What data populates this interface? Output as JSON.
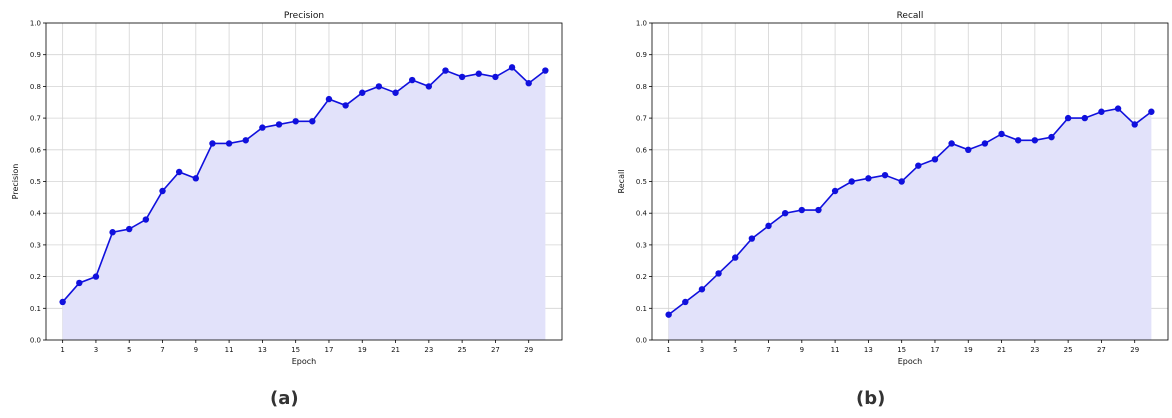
{
  "colors": {
    "line": "#1010dd",
    "fill": "#e2e2fa",
    "grid": "#d4d4d4",
    "text": "#111111"
  },
  "panel_labels": [
    "(a)",
    "(b)"
  ],
  "chart_data": [
    {
      "type": "area",
      "title": "Precision",
      "xlabel": "Epoch",
      "ylabel": "Precision",
      "xlim": [
        0,
        31
      ],
      "ylim": [
        0.0,
        1.0
      ],
      "xticks": [
        1,
        3,
        5,
        7,
        9,
        11,
        13,
        15,
        17,
        19,
        21,
        23,
        25,
        27,
        29
      ],
      "yticks": [
        0.0,
        0.1,
        0.2,
        0.3,
        0.4,
        0.5,
        0.6,
        0.7,
        0.8,
        0.9,
        1.0
      ],
      "grid": true,
      "x": [
        1,
        2,
        3,
        4,
        5,
        6,
        7,
        8,
        9,
        10,
        11,
        12,
        13,
        14,
        15,
        16,
        17,
        18,
        19,
        20,
        21,
        22,
        23,
        24,
        25,
        26,
        27,
        28,
        29,
        30
      ],
      "values": [
        0.12,
        0.18,
        0.2,
        0.34,
        0.35,
        0.38,
        0.47,
        0.53,
        0.51,
        0.62,
        0.62,
        0.63,
        0.67,
        0.68,
        0.69,
        0.69,
        0.76,
        0.74,
        0.78,
        0.8,
        0.78,
        0.82,
        0.8,
        0.85,
        0.83,
        0.84,
        0.83,
        0.86,
        0.81,
        0.85
      ]
    },
    {
      "type": "area",
      "title": "Recall",
      "xlabel": "Epoch",
      "ylabel": "Recall",
      "xlim": [
        0,
        31
      ],
      "ylim": [
        0.0,
        1.0
      ],
      "xticks": [
        1,
        3,
        5,
        7,
        9,
        11,
        13,
        15,
        17,
        19,
        21,
        23,
        25,
        27,
        29
      ],
      "yticks": [
        0.0,
        0.1,
        0.2,
        0.3,
        0.4,
        0.5,
        0.6,
        0.7,
        0.8,
        0.9,
        1.0
      ],
      "grid": true,
      "x": [
        1,
        2,
        3,
        4,
        5,
        6,
        7,
        8,
        9,
        10,
        11,
        12,
        13,
        14,
        15,
        16,
        17,
        18,
        19,
        20,
        21,
        22,
        23,
        24,
        25,
        26,
        27,
        28,
        29,
        30
      ],
      "values": [
        0.08,
        0.12,
        0.16,
        0.21,
        0.26,
        0.32,
        0.36,
        0.4,
        0.41,
        0.41,
        0.47,
        0.5,
        0.51,
        0.52,
        0.5,
        0.55,
        0.57,
        0.62,
        0.6,
        0.62,
        0.65,
        0.63,
        0.63,
        0.64,
        0.7,
        0.7,
        0.72,
        0.73,
        0.68,
        0.72
      ]
    }
  ]
}
